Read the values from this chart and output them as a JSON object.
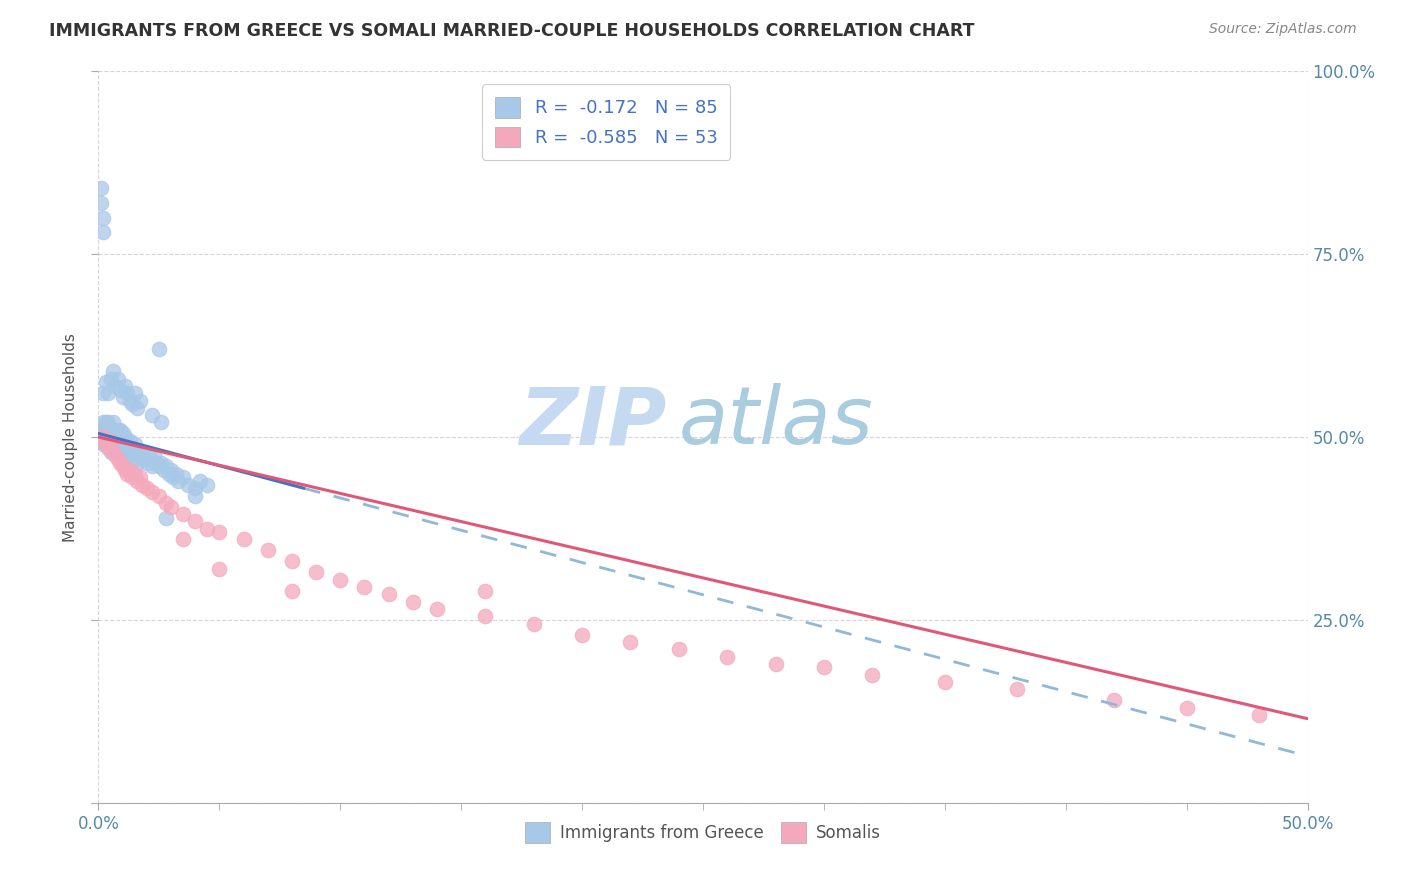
{
  "title": "IMMIGRANTS FROM GREECE VS SOMALI MARRIED-COUPLE HOUSEHOLDS CORRELATION CHART",
  "source": "Source: ZipAtlas.com",
  "ylabel": "Married-couple Households",
  "legend_label1": "Immigrants from Greece",
  "legend_label2": "Somalis",
  "R1": -0.172,
  "N1": 85,
  "R2": -0.585,
  "N2": 53,
  "color_blue": "#a8c8e8",
  "color_pink": "#f4a8bc",
  "line_blue": "#4472c4",
  "line_pink": "#e05878",
  "line_dash_color": "#90b8d8",
  "watermark_zip": "ZIP",
  "watermark_atlas": "atlas",
  "watermark_color_zip": "#c8dff0",
  "watermark_color_atlas": "#b0cce0",
  "background": "#ffffff",
  "xlim": [
    0.0,
    0.5
  ],
  "ylim": [
    0.0,
    1.0
  ],
  "greece_x": [
    0.001,
    0.002,
    0.002,
    0.002,
    0.003,
    0.003,
    0.003,
    0.003,
    0.004,
    0.004,
    0.004,
    0.005,
    0.005,
    0.005,
    0.006,
    0.006,
    0.006,
    0.007,
    0.007,
    0.008,
    0.008,
    0.008,
    0.009,
    0.009,
    0.01,
    0.01,
    0.01,
    0.011,
    0.011,
    0.012,
    0.012,
    0.013,
    0.013,
    0.014,
    0.015,
    0.015,
    0.016,
    0.016,
    0.017,
    0.018,
    0.019,
    0.02,
    0.021,
    0.022,
    0.023,
    0.024,
    0.025,
    0.026,
    0.027,
    0.028,
    0.029,
    0.03,
    0.031,
    0.032,
    0.033,
    0.035,
    0.037,
    0.04,
    0.042,
    0.045,
    0.002,
    0.003,
    0.004,
    0.005,
    0.006,
    0.007,
    0.008,
    0.009,
    0.01,
    0.011,
    0.012,
    0.013,
    0.014,
    0.015,
    0.016,
    0.017,
    0.022,
    0.026,
    0.028,
    0.04,
    0.001,
    0.001,
    0.002,
    0.002,
    0.025
  ],
  "greece_y": [
    0.495,
    0.51,
    0.49,
    0.52,
    0.5,
    0.52,
    0.51,
    0.49,
    0.505,
    0.52,
    0.49,
    0.51,
    0.5,
    0.48,
    0.51,
    0.495,
    0.52,
    0.505,
    0.49,
    0.51,
    0.495,
    0.48,
    0.51,
    0.49,
    0.505,
    0.49,
    0.475,
    0.5,
    0.485,
    0.495,
    0.48,
    0.495,
    0.475,
    0.485,
    0.49,
    0.47,
    0.48,
    0.465,
    0.475,
    0.48,
    0.47,
    0.465,
    0.475,
    0.46,
    0.475,
    0.465,
    0.46,
    0.465,
    0.455,
    0.46,
    0.45,
    0.455,
    0.445,
    0.45,
    0.44,
    0.445,
    0.435,
    0.43,
    0.44,
    0.435,
    0.56,
    0.575,
    0.56,
    0.58,
    0.59,
    0.57,
    0.58,
    0.565,
    0.555,
    0.57,
    0.56,
    0.55,
    0.545,
    0.56,
    0.54,
    0.55,
    0.53,
    0.52,
    0.39,
    0.42,
    0.84,
    0.82,
    0.8,
    0.78,
    0.62
  ],
  "somali_x": [
    0.002,
    0.003,
    0.004,
    0.005,
    0.006,
    0.007,
    0.008,
    0.009,
    0.01,
    0.011,
    0.012,
    0.013,
    0.014,
    0.015,
    0.016,
    0.017,
    0.018,
    0.02,
    0.022,
    0.025,
    0.028,
    0.03,
    0.035,
    0.04,
    0.045,
    0.05,
    0.06,
    0.07,
    0.08,
    0.09,
    0.1,
    0.11,
    0.12,
    0.13,
    0.14,
    0.16,
    0.18,
    0.2,
    0.22,
    0.24,
    0.26,
    0.28,
    0.3,
    0.32,
    0.35,
    0.38,
    0.42,
    0.45,
    0.48,
    0.035,
    0.05,
    0.08,
    0.16
  ],
  "somali_y": [
    0.5,
    0.49,
    0.485,
    0.495,
    0.48,
    0.475,
    0.47,
    0.465,
    0.46,
    0.455,
    0.45,
    0.455,
    0.445,
    0.45,
    0.44,
    0.445,
    0.435,
    0.43,
    0.425,
    0.42,
    0.41,
    0.405,
    0.395,
    0.385,
    0.375,
    0.37,
    0.36,
    0.345,
    0.33,
    0.315,
    0.305,
    0.295,
    0.285,
    0.275,
    0.265,
    0.255,
    0.245,
    0.23,
    0.22,
    0.21,
    0.2,
    0.19,
    0.185,
    0.175,
    0.165,
    0.155,
    0.14,
    0.13,
    0.12,
    0.36,
    0.32,
    0.29,
    0.29
  ],
  "greece_line_x_end": 0.085,
  "greece_line_y_start": 0.505,
  "greece_line_y_end": 0.43,
  "somali_line_y_start": 0.5,
  "somali_line_y_end": 0.115
}
